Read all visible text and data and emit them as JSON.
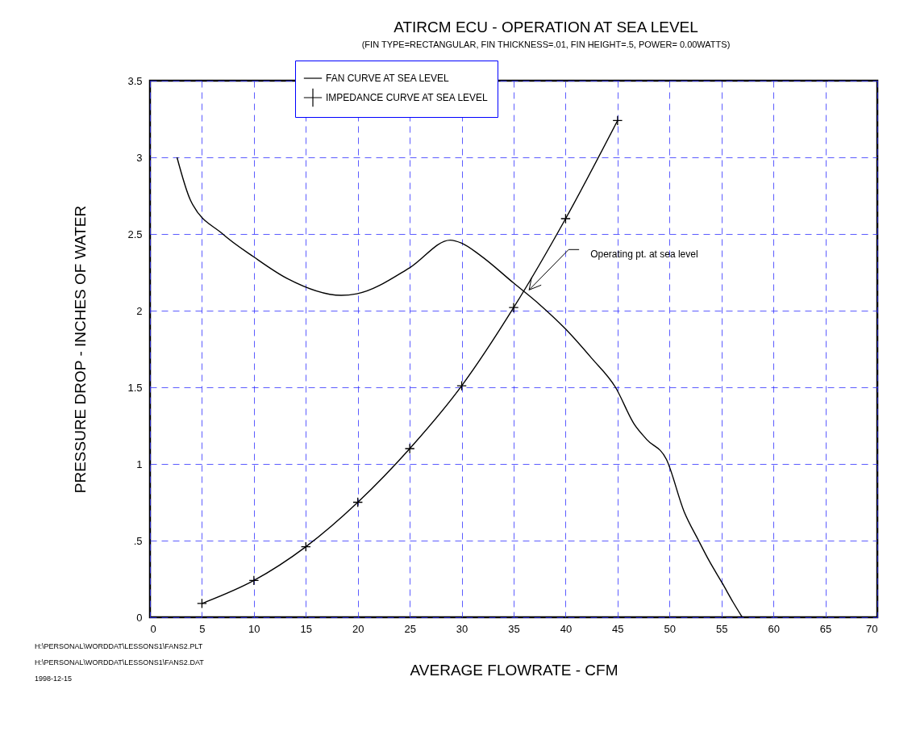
{
  "chart_data": {
    "type": "line",
    "title": "ATIRCM ECU - OPERATION AT SEA LEVEL",
    "subtitle": "(FIN TYPE=RECTANGULAR, FIN THICKNESS=.01, FIN HEIGHT=.5, POWER=   0.00WATTS)",
    "xlabel": "AVERAGE FLOWRATE - CFM",
    "ylabel": "PRESSURE DROP - INCHES OF WATER",
    "xlim": [
      0,
      70
    ],
    "xticks": [
      0,
      5,
      10,
      15,
      20,
      25,
      30,
      35,
      40,
      45,
      50,
      55,
      60,
      65,
      70
    ],
    "ylim": [
      0,
      3.5
    ],
    "yticks": [
      0,
      {
        "value": 0.5,
        "label": ".5"
      },
      1,
      1.5,
      2,
      2.5,
      3,
      3.5
    ],
    "grid": true,
    "legend": "top",
    "series": [
      {
        "name": "FAN CURVE AT SEA LEVEL",
        "color": "#000000",
        "marker": "none",
        "x": [
          2.6,
          3.9,
          7.0,
          10.0,
          13.2,
          18.4,
          19.9,
          25.0,
          28.9,
          30.0,
          31.8,
          35.0,
          37.5,
          40.0,
          42.5,
          44.8,
          46.6,
          47.8,
          49.7,
          51.4,
          52.8,
          53.8,
          55.1,
          56.1,
          57.0
        ],
        "values": [
          3.0,
          2.72,
          2.5,
          2.35,
          2.21,
          2.1,
          2.11,
          2.28,
          2.46,
          2.44,
          2.36,
          2.18,
          2.04,
          1.88,
          1.69,
          1.5,
          1.26,
          1.16,
          1.03,
          0.69,
          0.5,
          0.37,
          0.22,
          0.1,
          0
        ]
      },
      {
        "name": "IMPEDANCE CURVE AT SEA LEVEL",
        "color": "#000000",
        "marker": "cross",
        "x": [
          5,
          10,
          15,
          20,
          25,
          30,
          35,
          40,
          45
        ],
        "values": [
          0.09,
          0.24,
          0.46,
          0.75,
          1.1,
          1.51,
          2.02,
          2.6,
          3.24
        ]
      }
    ],
    "annotations": [
      {
        "text": "Operating pt. at sea level",
        "x": 36.1,
        "y": 2.13
      },
      "H:\\PERSONAL\\WORDDAT\\LESSONS1\\FANS2.PLT",
      "H:\\PERSONAL\\WORDDAT\\LESSONS1\\FANS2.DAT",
      "1998-12-15"
    ]
  }
}
